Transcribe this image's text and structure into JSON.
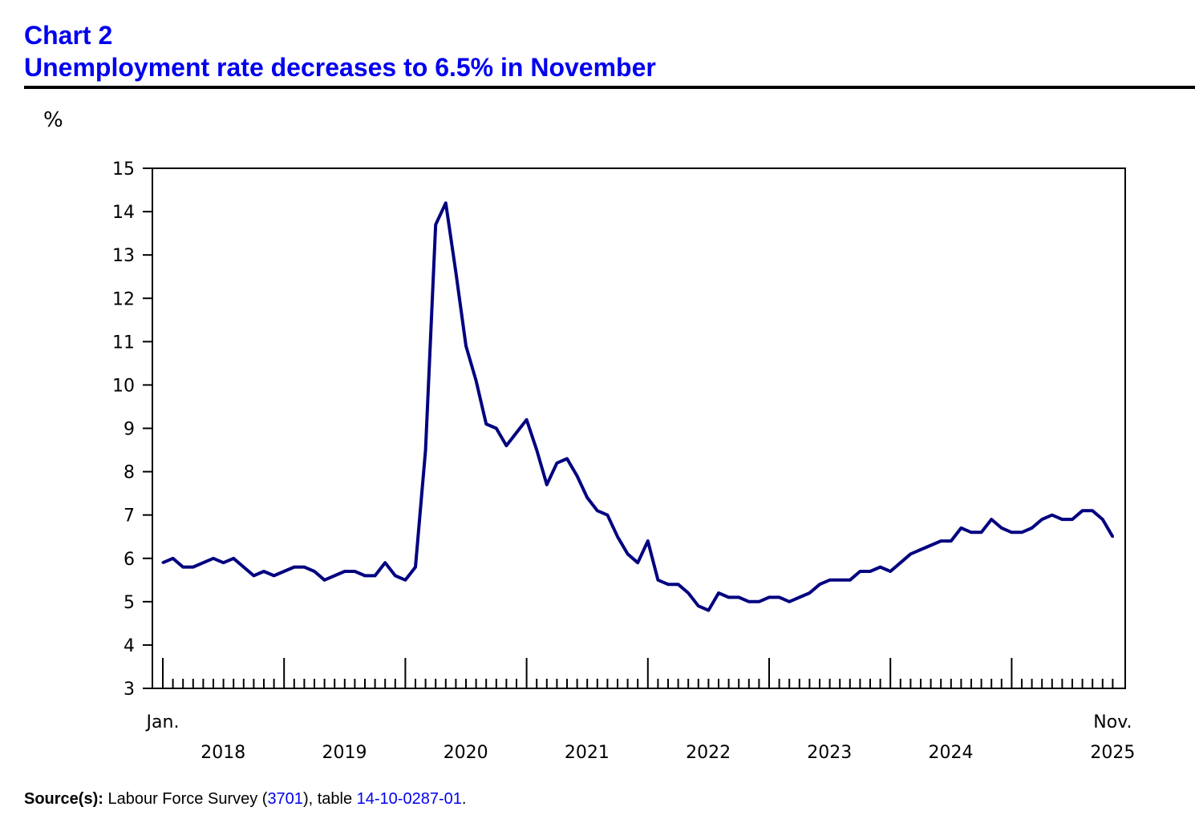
{
  "title": {
    "line1": "Chart 2",
    "line2": "Unemployment rate decreases to 6.5% in November",
    "color": "#0000ee"
  },
  "source": {
    "label": "Source(s):",
    "text_before": " Labour Force Survey (",
    "survey_link": "3701",
    "text_middle": "), table ",
    "table_link": "14-10-0287-01",
    "text_after": "."
  },
  "chart_data": {
    "type": "line",
    "title": "Unemployment rate decreases to 6.5% in November",
    "ylabel": "%",
    "xlabel": "",
    "ylim": [
      3,
      15
    ],
    "yticks": [
      3,
      4,
      5,
      6,
      7,
      8,
      9,
      10,
      11,
      12,
      13,
      14,
      15
    ],
    "start": "Jan. 2018",
    "end": "Nov. 2025",
    "start_label": "Jan.",
    "end_label": "Nov.",
    "year_labels": [
      "2018",
      "2019",
      "2020",
      "2021",
      "2022",
      "2023",
      "2024",
      "2025"
    ],
    "line_color": "#000080",
    "grid": false,
    "series": [
      {
        "name": "Unemployment rate",
        "values": [
          5.9,
          6.0,
          5.8,
          5.8,
          5.9,
          6.0,
          5.9,
          6.0,
          5.8,
          5.6,
          5.7,
          5.6,
          5.7,
          5.8,
          5.8,
          5.7,
          5.5,
          5.6,
          5.7,
          5.7,
          5.6,
          5.6,
          5.9,
          5.6,
          5.5,
          5.8,
          8.5,
          13.7,
          14.2,
          12.6,
          10.9,
          10.1,
          9.1,
          9.0,
          8.6,
          8.9,
          9.2,
          8.5,
          7.7,
          8.2,
          8.3,
          7.9,
          7.4,
          7.1,
          7.0,
          6.5,
          6.1,
          5.9,
          6.4,
          5.5,
          5.4,
          5.4,
          5.2,
          4.9,
          4.8,
          5.2,
          5.1,
          5.1,
          5.0,
          5.0,
          5.1,
          5.1,
          5.0,
          5.1,
          5.2,
          5.4,
          5.5,
          5.5,
          5.5,
          5.7,
          5.7,
          5.8,
          5.7,
          5.9,
          6.1,
          6.2,
          6.3,
          6.4,
          6.4,
          6.7,
          6.6,
          6.6,
          6.9,
          6.7,
          6.6,
          6.6,
          6.7,
          6.9,
          7.0,
          6.9,
          6.9,
          7.1,
          7.1,
          6.9,
          6.5
        ]
      }
    ]
  }
}
